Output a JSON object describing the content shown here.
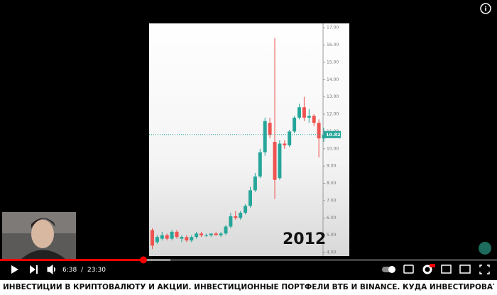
{
  "player": {
    "current_time": "6:38",
    "separator": "/",
    "duration": "23:30"
  },
  "video_title": "ИНВЕСТИЦИИ В КРИПТОВАЛЮТУ И АКЦИИ. ИНВЕСТИЦИОННЫЕ ПОРТФЕЛИ ВТБ И BINANCE. КУДА ИНВЕСТИРОВАТЬ ДЕНЬГИ",
  "chart_data": {
    "type": "candlestick",
    "annotation": "2012",
    "open": [
      5.3,
      4.6,
      4.8,
      5.0,
      4.8,
      5.2,
      4.8,
      4.9,
      4.7,
      4.9,
      5.1,
      5.0,
      5.0,
      5.1,
      5.0,
      5.1,
      5.5,
      6.1,
      6.0,
      6.3,
      6.7,
      7.6,
      8.4,
      9.8,
      11.5,
      10.4,
      8.3,
      10.3,
      10.2,
      11.0,
      11.8,
      12.4,
      11.8,
      11.9,
      11.5,
      10.6
    ],
    "high": [
      5.4,
      5.0,
      5.2,
      5.1,
      5.3,
      5.3,
      5.0,
      5.0,
      5.0,
      5.2,
      5.2,
      5.1,
      5.1,
      5.2,
      5.2,
      5.6,
      6.3,
      6.4,
      6.4,
      6.8,
      7.8,
      8.6,
      10.0,
      11.8,
      11.8,
      16.4,
      10.5,
      10.5,
      11.1,
      11.9,
      12.6,
      13.0,
      12.3,
      12.0,
      11.7,
      11.2
    ],
    "low": [
      4.2,
      4.5,
      4.7,
      4.7,
      4.7,
      4.8,
      4.6,
      4.6,
      4.6,
      4.8,
      4.9,
      4.9,
      4.9,
      5.0,
      4.9,
      5.0,
      5.4,
      5.9,
      5.9,
      6.2,
      6.6,
      7.5,
      8.3,
      9.6,
      10.6,
      7.1,
      8.2,
      10.0,
      10.1,
      10.9,
      11.7,
      11.6,
      11.5,
      11.3,
      9.5,
      10.4
    ],
    "close": [
      4.4,
      4.9,
      5.0,
      4.8,
      5.2,
      4.9,
      4.9,
      4.7,
      4.9,
      5.1,
      5.0,
      5.0,
      5.1,
      5.0,
      5.1,
      5.5,
      6.1,
      6.0,
      6.3,
      6.7,
      7.6,
      8.4,
      9.8,
      11.6,
      10.8,
      8.2,
      10.3,
      10.2,
      11.0,
      11.8,
      12.4,
      11.8,
      11.9,
      11.5,
      10.6,
      10.8
    ],
    "up_color": "#26a69a",
    "down_color": "#ef5350",
    "ylim": [
      3.8,
      17.25
    ],
    "yticks": [
      {
        "value": 4,
        "label": "4.00"
      },
      {
        "value": 5,
        "label": "5.00"
      },
      {
        "value": 6,
        "label": "6.00"
      },
      {
        "value": 7,
        "label": "7.00"
      },
      {
        "value": 8,
        "label": "8.00"
      },
      {
        "value": 9,
        "label": "9.00"
      },
      {
        "value": 10,
        "label": "10.00"
      },
      {
        "value": 11,
        "label": "11.00"
      },
      {
        "value": 12,
        "label": "12.00"
      },
      {
        "value": 13,
        "label": "13.00"
      },
      {
        "value": 14,
        "label": "14.00"
      },
      {
        "value": 15,
        "label": "15.00"
      },
      {
        "value": 16,
        "label": "16.00"
      },
      {
        "value": 17,
        "label": "17.00"
      }
    ],
    "last_price": 10.82
  }
}
